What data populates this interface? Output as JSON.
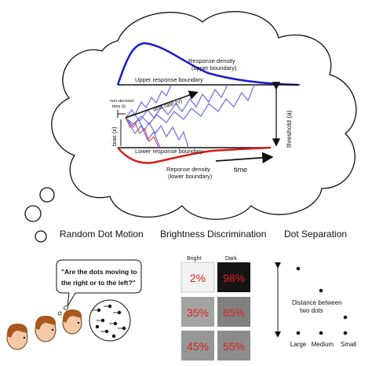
{
  "ddm": {
    "upper_density_label": [
      "Response density",
      "(upper boundary)"
    ],
    "upper_boundary_label": "Upper response boundary",
    "non_decision_label": [
      "non-decision",
      "time (t)"
    ],
    "drift_label": "drift rate (v)",
    "bias_label": "bias (z)",
    "threshold_label": "threshold (a)",
    "lower_boundary_label": "Lower response boundary",
    "lower_density_label": [
      "Reponse density",
      "(lower boundary)"
    ],
    "time_label": "time",
    "colors": {
      "upper_density": "#1a1ad0",
      "lower_density": "#d81a1a",
      "paths": "#6a6ae6"
    }
  },
  "tasks": {
    "rdm_title": "Random Dot Motion",
    "bd_title": "Brightness Discrimination",
    "ds_title": "Dot Separation"
  },
  "rdm": {
    "speech": [
      "\"Are the dots moving to",
      "the right or to the left?\""
    ]
  },
  "brightness": {
    "col_bright": "Bright",
    "col_dark": "Dark",
    "cells": [
      "2%",
      "98%",
      "35%",
      "65%",
      "45%",
      "55%"
    ]
  },
  "separation": {
    "axis_label": [
      "Distance between",
      "two dots"
    ],
    "sizes": [
      "Large",
      "Medium",
      "Small"
    ]
  }
}
